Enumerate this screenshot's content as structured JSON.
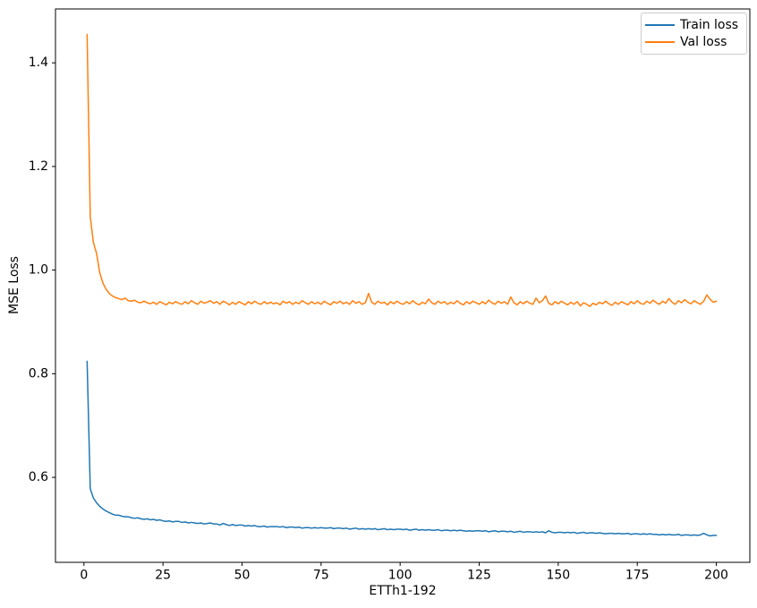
{
  "chart_data": {
    "type": "line",
    "title": "",
    "xlabel": "ETTh1-192",
    "ylabel": "MSE Loss",
    "xlim": [
      -9,
      210.6
    ],
    "ylim": [
      0.436,
      1.504
    ],
    "xticks": [
      0,
      25,
      50,
      75,
      100,
      125,
      150,
      175,
      200
    ],
    "xtick_labels": [
      "0",
      "25",
      "50",
      "75",
      "100",
      "125",
      "150",
      "175",
      "200"
    ],
    "yticks": [
      0.6,
      0.8,
      1.0,
      1.2,
      1.4
    ],
    "ytick_labels": [
      "0.6",
      "0.8",
      "1.0",
      "1.2",
      "1.4"
    ],
    "grid": false,
    "legend_position": "upper-right",
    "x_start": 1,
    "x_step": 1,
    "axis_color": "#000000",
    "series": [
      {
        "name": "Train loss",
        "color": "#1f77b4",
        "values": [
          0.824,
          0.578,
          0.56,
          0.551,
          0.544,
          0.539,
          0.535,
          0.532,
          0.529,
          0.527,
          0.527,
          0.525,
          0.524,
          0.524,
          0.522,
          0.521,
          0.522,
          0.52,
          0.519,
          0.52,
          0.518,
          0.519,
          0.517,
          0.518,
          0.516,
          0.515,
          0.516,
          0.514,
          0.515,
          0.515,
          0.513,
          0.514,
          0.512,
          0.513,
          0.512,
          0.511,
          0.512,
          0.51,
          0.511,
          0.512,
          0.51,
          0.51,
          0.508,
          0.511,
          0.509,
          0.507,
          0.509,
          0.507,
          0.508,
          0.508,
          0.506,
          0.507,
          0.506,
          0.507,
          0.505,
          0.505,
          0.506,
          0.504,
          0.505,
          0.505,
          0.505,
          0.504,
          0.505,
          0.503,
          0.504,
          0.504,
          0.503,
          0.504,
          0.502,
          0.503,
          0.503,
          0.502,
          0.503,
          0.502,
          0.503,
          0.502,
          0.502,
          0.503,
          0.501,
          0.502,
          0.502,
          0.501,
          0.502,
          0.5,
          0.501,
          0.502,
          0.5,
          0.501,
          0.5,
          0.501,
          0.5,
          0.501,
          0.499,
          0.5,
          0.501,
          0.499,
          0.5,
          0.499,
          0.5,
          0.5,
          0.499,
          0.5,
          0.498,
          0.499,
          0.5,
          0.498,
          0.499,
          0.498,
          0.499,
          0.498,
          0.498,
          0.499,
          0.497,
          0.498,
          0.498,
          0.497,
          0.498,
          0.497,
          0.498,
          0.497,
          0.496,
          0.497,
          0.496,
          0.497,
          0.497,
          0.496,
          0.497,
          0.495,
          0.496,
          0.497,
          0.495,
          0.496,
          0.496,
          0.495,
          0.496,
          0.494,
          0.495,
          0.496,
          0.494,
          0.495,
          0.495,
          0.494,
          0.495,
          0.494,
          0.495,
          0.493,
          0.497,
          0.494,
          0.493,
          0.494,
          0.494,
          0.493,
          0.494,
          0.493,
          0.494,
          0.492,
          0.493,
          0.494,
          0.492,
          0.493,
          0.493,
          0.492,
          0.493,
          0.492,
          0.491,
          0.492,
          0.492,
          0.491,
          0.492,
          0.491,
          0.491,
          0.492,
          0.49,
          0.491,
          0.491,
          0.49,
          0.491,
          0.49,
          0.491,
          0.49,
          0.49,
          0.489,
          0.49,
          0.489,
          0.49,
          0.489,
          0.489,
          0.49,
          0.488,
          0.489,
          0.489,
          0.488,
          0.489,
          0.488,
          0.489,
          0.492,
          0.489,
          0.487,
          0.488,
          0.488
        ]
      },
      {
        "name": "Val loss",
        "color": "#ff7f0e",
        "values": [
          1.455,
          1.103,
          1.053,
          1.032,
          0.995,
          0.975,
          0.963,
          0.955,
          0.95,
          0.947,
          0.945,
          0.943,
          0.946,
          0.941,
          0.94,
          0.942,
          0.938,
          0.937,
          0.94,
          0.937,
          0.935,
          0.938,
          0.934,
          0.939,
          0.936,
          0.933,
          0.938,
          0.935,
          0.939,
          0.936,
          0.934,
          0.939,
          0.935,
          0.941,
          0.937,
          0.934,
          0.94,
          0.936,
          0.938,
          0.941,
          0.936,
          0.939,
          0.934,
          0.94,
          0.937,
          0.933,
          0.938,
          0.934,
          0.939,
          0.936,
          0.933,
          0.939,
          0.935,
          0.94,
          0.936,
          0.934,
          0.939,
          0.935,
          0.938,
          0.935,
          0.937,
          0.933,
          0.94,
          0.936,
          0.939,
          0.934,
          0.938,
          0.935,
          0.941,
          0.937,
          0.934,
          0.939,
          0.935,
          0.938,
          0.934,
          0.94,
          0.936,
          0.933,
          0.939,
          0.936,
          0.94,
          0.935,
          0.938,
          0.934,
          0.941,
          0.936,
          0.939,
          0.934,
          0.937,
          0.955,
          0.938,
          0.934,
          0.94,
          0.936,
          0.938,
          0.933,
          0.939,
          0.935,
          0.94,
          0.936,
          0.934,
          0.939,
          0.935,
          0.941,
          0.936,
          0.933,
          0.938,
          0.935,
          0.944,
          0.937,
          0.934,
          0.94,
          0.936,
          0.939,
          0.934,
          0.938,
          0.935,
          0.941,
          0.936,
          0.933,
          0.939,
          0.935,
          0.94,
          0.937,
          0.934,
          0.939,
          0.935,
          0.942,
          0.937,
          0.934,
          0.94,
          0.936,
          0.939,
          0.934,
          0.948,
          0.937,
          0.933,
          0.939,
          0.935,
          0.94,
          0.936,
          0.934,
          0.946,
          0.937,
          0.941,
          0.95,
          0.936,
          0.933,
          0.939,
          0.935,
          0.94,
          0.936,
          0.933,
          0.938,
          0.934,
          0.939,
          0.931,
          0.937,
          0.934,
          0.93,
          0.936,
          0.933,
          0.938,
          0.935,
          0.94,
          0.935,
          0.932,
          0.938,
          0.934,
          0.939,
          0.936,
          0.933,
          0.939,
          0.935,
          0.941,
          0.936,
          0.934,
          0.94,
          0.936,
          0.942,
          0.937,
          0.934,
          0.94,
          0.936,
          0.945,
          0.938,
          0.934,
          0.941,
          0.937,
          0.943,
          0.938,
          0.935,
          0.941,
          0.937,
          0.934,
          0.94,
          0.952,
          0.944,
          0.938,
          0.94
        ]
      }
    ]
  }
}
